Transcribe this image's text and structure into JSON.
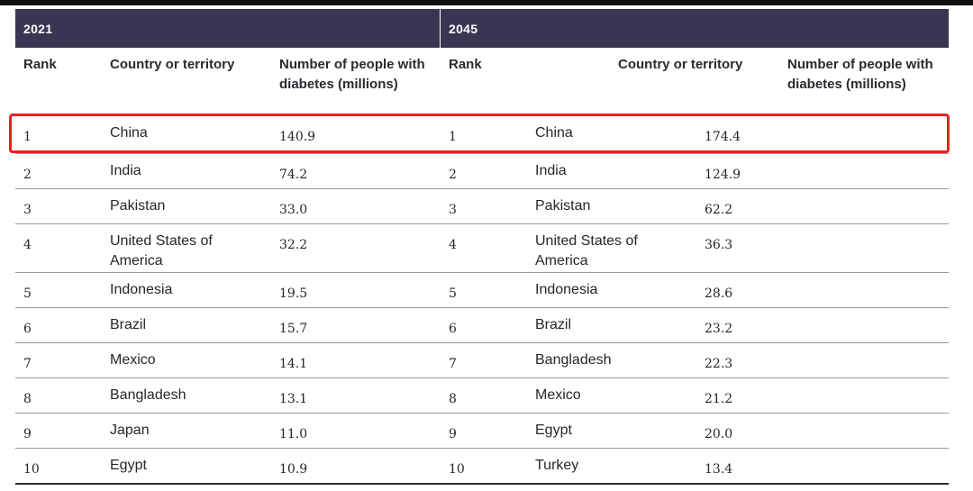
{
  "tables": [
    {
      "year": "2021",
      "headers": {
        "rank": "Rank",
        "country": "Country or territory",
        "number": "Number of people with diabetes (millions)"
      },
      "rows": [
        {
          "rank": "1",
          "country": "China",
          "value": "140.9"
        },
        {
          "rank": "2",
          "country": "India",
          "value": "74.2"
        },
        {
          "rank": "3",
          "country": "Pakistan",
          "value": "33.0"
        },
        {
          "rank": "4",
          "country": "United States of America",
          "value": "32.2"
        },
        {
          "rank": "5",
          "country": "Indonesia",
          "value": "19.5"
        },
        {
          "rank": "6",
          "country": "Brazil",
          "value": "15.7"
        },
        {
          "rank": "7",
          "country": "Mexico",
          "value": "14.1"
        },
        {
          "rank": "8",
          "country": "Bangladesh",
          "value": "13.1"
        },
        {
          "rank": "9",
          "country": "Japan",
          "value": "11.0"
        },
        {
          "rank": "10",
          "country": "Egypt",
          "value": "10.9"
        }
      ]
    },
    {
      "year": "2045",
      "headers": {
        "rank": "Rank",
        "country": "Country or territory",
        "number": "Number of people with diabetes (millions)"
      },
      "rows": [
        {
          "rank": "1",
          "country": "China",
          "value": "174.4"
        },
        {
          "rank": "2",
          "country": "India",
          "value": "124.9"
        },
        {
          "rank": "3",
          "country": "Pakistan",
          "value": "62.2"
        },
        {
          "rank": "4",
          "country": "United States of America",
          "value": "36.3"
        },
        {
          "rank": "5",
          "country": "Indonesia",
          "value": "28.6"
        },
        {
          "rank": "6",
          "country": "Brazil",
          "value": "23.2"
        },
        {
          "rank": "7",
          "country": "Bangladesh",
          "value": "22.3"
        },
        {
          "rank": "8",
          "country": "Mexico",
          "value": "21.2"
        },
        {
          "rank": "9",
          "country": "Egypt",
          "value": "20.0"
        },
        {
          "rank": "10",
          "country": "Turkey",
          "value": "13.4"
        }
      ]
    }
  ],
  "colors": {
    "header_band": "#3b3553",
    "highlight_border": "#e5231b"
  },
  "highlighted_row_rank": "1"
}
